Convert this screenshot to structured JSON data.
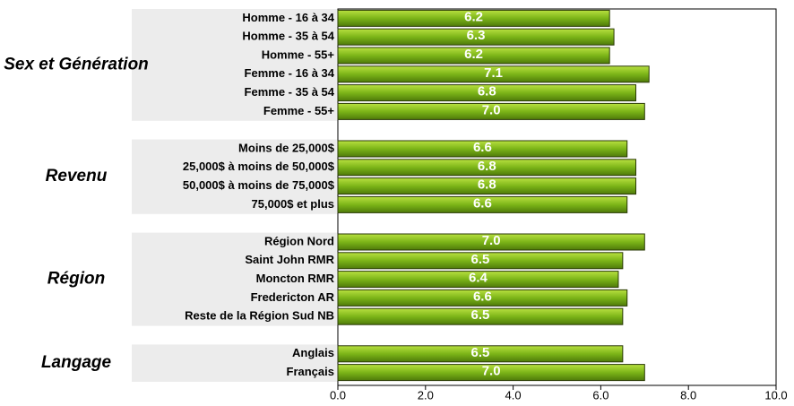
{
  "chart_data": {
    "type": "bar",
    "orientation": "horizontal",
    "color": "#7cb518",
    "groups": [
      {
        "name": "Sex et Génération",
        "categories": [
          "Homme - 16 à 34",
          "Homme - 35 à 54",
          "Homme - 55+",
          "Femme - 16 à 34",
          "Femme - 35 à 54",
          "Femme - 55+"
        ],
        "values": [
          6.2,
          6.3,
          6.2,
          7.1,
          6.8,
          7.0
        ],
        "value_labels": [
          "6.2",
          "6.3",
          "6.2",
          "7.1",
          "6.8",
          "7.0"
        ]
      },
      {
        "name": "Revenu",
        "categories": [
          "Moins de 25,000$",
          "25,000$ à moins de 50,000$",
          "50,000$ à moins de 75,000$",
          "75,000$ et plus"
        ],
        "values": [
          6.6,
          6.8,
          6.8,
          6.6
        ],
        "value_labels": [
          "6.6",
          "6.8",
          "6.8",
          "6.6"
        ]
      },
      {
        "name": "Région",
        "categories": [
          "Région Nord",
          "Saint John RMR",
          "Moncton RMR",
          "Fredericton AR",
          "Reste de la Région Sud NB"
        ],
        "values": [
          7.0,
          6.5,
          6.4,
          6.6,
          6.5
        ],
        "value_labels": [
          "7.0",
          "6.5",
          "6.4",
          "6.6",
          "6.5"
        ]
      },
      {
        "name": "Langage",
        "categories": [
          "Anglais",
          "Français"
        ],
        "values": [
          6.5,
          7.0
        ],
        "value_labels": [
          "6.5",
          "7.0"
        ]
      }
    ],
    "xlim": [
      0,
      10
    ],
    "xticks": [
      {
        "value": 0,
        "label": "0.0"
      },
      {
        "value": 2,
        "label": "2.0"
      },
      {
        "value": 4,
        "label": "4.0"
      },
      {
        "value": 6,
        "label": "6.0"
      },
      {
        "value": 8,
        "label": "8.0"
      },
      {
        "value": 10,
        "label": "10.0"
      }
    ]
  }
}
